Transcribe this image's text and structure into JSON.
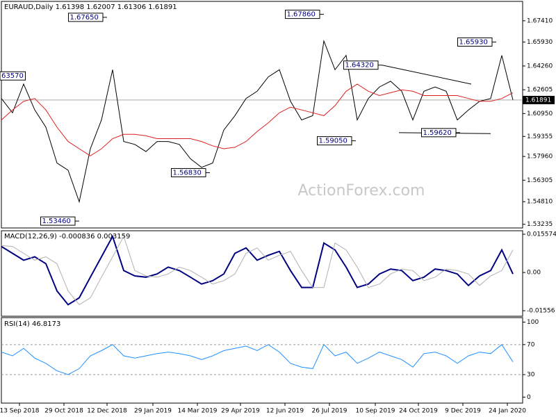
{
  "chart_data": [
    {
      "type": "line",
      "title": "EURAUD,Daily 1.61398 1.62007 1.61306 1.61891",
      "watermark": "ActionForex.com",
      "x": [
        0,
        8,
        16,
        24,
        32,
        40,
        48,
        56,
        64,
        72,
        80,
        88,
        96,
        104,
        112,
        120,
        128,
        136,
        144,
        152,
        160,
        168,
        176,
        184,
        192,
        200,
        208,
        216,
        224,
        232,
        240,
        248,
        256,
        264,
        272,
        280,
        288,
        296,
        304,
        312,
        320,
        328,
        336,
        344,
        352,
        360,
        368
      ],
      "series": [
        {
          "name": "EURAUD",
          "color": "#000000",
          "values": [
            1.62,
            1.61,
            1.63,
            1.612,
            1.6,
            1.575,
            1.57,
            1.548,
            1.585,
            1.605,
            1.64,
            1.59,
            1.588,
            1.583,
            1.59,
            1.59,
            1.588,
            1.578,
            1.572,
            1.575,
            1.598,
            1.608,
            1.62,
            1.625,
            1.635,
            1.64,
            1.618,
            1.605,
            1.608,
            1.66,
            1.64,
            1.65,
            1.605,
            1.62,
            1.628,
            1.632,
            1.625,
            1.605,
            1.625,
            1.628,
            1.625,
            1.605,
            1.612,
            1.618,
            1.62,
            1.65,
            1.619
          ]
        },
        {
          "name": "MA",
          "color": "#e02020",
          "values": [
            1.605,
            1.612,
            1.618,
            1.62,
            1.612,
            1.6,
            1.59,
            1.585,
            1.58,
            1.585,
            1.592,
            1.595,
            1.595,
            1.594,
            1.592,
            1.592,
            1.592,
            1.592,
            1.59,
            1.587,
            1.585,
            1.586,
            1.59,
            1.597,
            1.603,
            1.61,
            1.614,
            1.612,
            1.61,
            1.608,
            1.615,
            1.625,
            1.63,
            1.625,
            1.622,
            1.624,
            1.626,
            1.625,
            1.622,
            1.622,
            1.622,
            1.622,
            1.62,
            1.618,
            1.618,
            1.62,
            1.624
          ]
        }
      ],
      "last_price": {
        "value": 1.61891,
        "label": "1.61891"
      },
      "annotations": [
        {
          "text": "63570",
          "x": 14,
          "y": 1.6357
        },
        {
          "text": "1.67650",
          "x": 76,
          "y": 1.6765
        },
        {
          "text": "1.53460",
          "x": 56,
          "y": 1.5346
        },
        {
          "text": "1.56830",
          "x": 150,
          "y": 1.5683
        },
        {
          "text": "1.67860",
          "x": 232,
          "y": 1.6786
        },
        {
          "text": "1.59050",
          "x": 255,
          "y": 1.5905
        },
        {
          "text": "1.64320",
          "x": 274,
          "y": 1.6432
        },
        {
          "text": "1.59620",
          "x": 330,
          "y": 1.5962
        },
        {
          "text": "1.65930",
          "x": 356,
          "y": 1.6593
        }
      ],
      "trendlines": [
        {
          "x": [
            274,
            338
          ],
          "y": [
            1.6432,
            1.63
          ]
        },
        {
          "x": [
            286,
            352
          ],
          "y": [
            1.5962,
            1.5955
          ]
        }
      ],
      "xlim": [
        0,
        375
      ],
      "ylim": [
        1.5298,
        1.6876
      ],
      "yticks": [
        {
          "value": 1.6741,
          "label": "1.67410"
        },
        {
          "value": 1.6593,
          "label": "1.65930"
        },
        {
          "value": 1.6426,
          "label": "1.64260"
        },
        1.62605,
        {
          "value": 1.6095,
          "label": "1.60950"
        },
        1.59355,
        {
          "value": 1.5796,
          "label": "1.57960"
        },
        1.56305,
        {
          "value": 1.5481,
          "label": "1.54810"
        },
        1.53235
      ]
    },
    {
      "type": "line",
      "title": "MACD(12,26,9) -0.000836 0.003159",
      "series": [
        {
          "name": "MACD",
          "color": "#000080",
          "values": [
            0.0106,
            0.0078,
            0.005,
            0.0064,
            0.0036,
            -0.0075,
            -0.0131,
            -0.0103,
            -0.0019,
            0.0064,
            0.0147,
            0.0008,
            -0.0014,
            -0.0019,
            -0.0006,
            0.0022,
            0.0008,
            -0.0019,
            -0.0047,
            -0.0033,
            -0.0006,
            0.0078,
            0.01,
            0.005,
            0.007,
            0.0086,
            0.0008,
            -0.0061,
            -0.0061,
            0.012,
            0.0092,
            0.0022,
            -0.0061,
            -0.0047,
            -0.0006,
            0.0014,
            0.0008,
            -0.0033,
            -0.0019,
            0.0014,
            0.0008,
            -0.0006,
            -0.0053,
            -0.0014,
            0.0008,
            0.0092,
            -0.0006
          ]
        },
        {
          "name": "Signal",
          "color": "#b0b0b0",
          "values": [
            0.011,
            0.0106,
            0.0078,
            0.005,
            0.0064,
            0.0036,
            -0.0075,
            -0.0131,
            -0.0103,
            -0.0019,
            0.0064,
            0.0147,
            0.0008,
            -0.0014,
            -0.0019,
            -0.0006,
            0.0022,
            0.0008,
            -0.0019,
            -0.0047,
            -0.0033,
            -0.0006,
            0.0078,
            0.01,
            0.005,
            0.007,
            0.0086,
            0.0008,
            -0.0061,
            -0.0061,
            0.012,
            0.0092,
            0.0022,
            -0.0061,
            -0.0047,
            -0.0006,
            0.0014,
            0.0008,
            -0.0033,
            -0.0019,
            0.0014,
            0.0008,
            -0.0006,
            -0.0053,
            -0.0014,
            0.0008,
            0.0092
          ]
        }
      ],
      "ylim": [
        -0.0178,
        0.017
      ],
      "yticks": [
        0.015574,
        {
          "value": 0,
          "label": "0.00"
        },
        -0.01556
      ]
    },
    {
      "type": "line",
      "title": "RSI(14) 46.8173",
      "series": [
        {
          "name": "RSI",
          "color": "#1e90ff",
          "values": [
            60,
            55,
            65,
            52,
            45,
            35,
            30,
            38,
            55,
            62,
            70,
            55,
            52,
            55,
            58,
            60,
            58,
            55,
            50,
            55,
            62,
            65,
            68,
            62,
            70,
            60,
            45,
            40,
            38,
            70,
            55,
            60,
            45,
            52,
            60,
            55,
            50,
            40,
            58,
            60,
            55,
            45,
            55,
            60,
            58,
            70,
            47
          ]
        }
      ],
      "ylim": [
        -8,
        106
      ],
      "yticks": [
        100,
        70,
        30,
        0
      ],
      "dotted_levels": [
        70,
        30
      ],
      "xticks": [
        {
          "value": 13,
          "label": "13 Sep 2018"
        },
        {
          "value": 45,
          "label": "29 Oct 2018"
        },
        {
          "value": 76,
          "label": "12 Dec 2018"
        },
        {
          "value": 109,
          "label": "29 Jan 2019"
        },
        {
          "value": 141,
          "label": "14 Mar 2019"
        },
        {
          "value": 172,
          "label": "29 Apr 2019"
        },
        {
          "value": 204,
          "label": "12 Jun 2019"
        },
        {
          "value": 236,
          "label": "26 Jul 2019"
        },
        {
          "value": 269,
          "label": "10 Sep 2019"
        },
        {
          "value": 300,
          "label": "24 Oct 2019"
        },
        {
          "value": 332,
          "label": "9 Dec 2019"
        },
        {
          "value": 364,
          "label": "24 Jan 2020"
        }
      ]
    }
  ]
}
